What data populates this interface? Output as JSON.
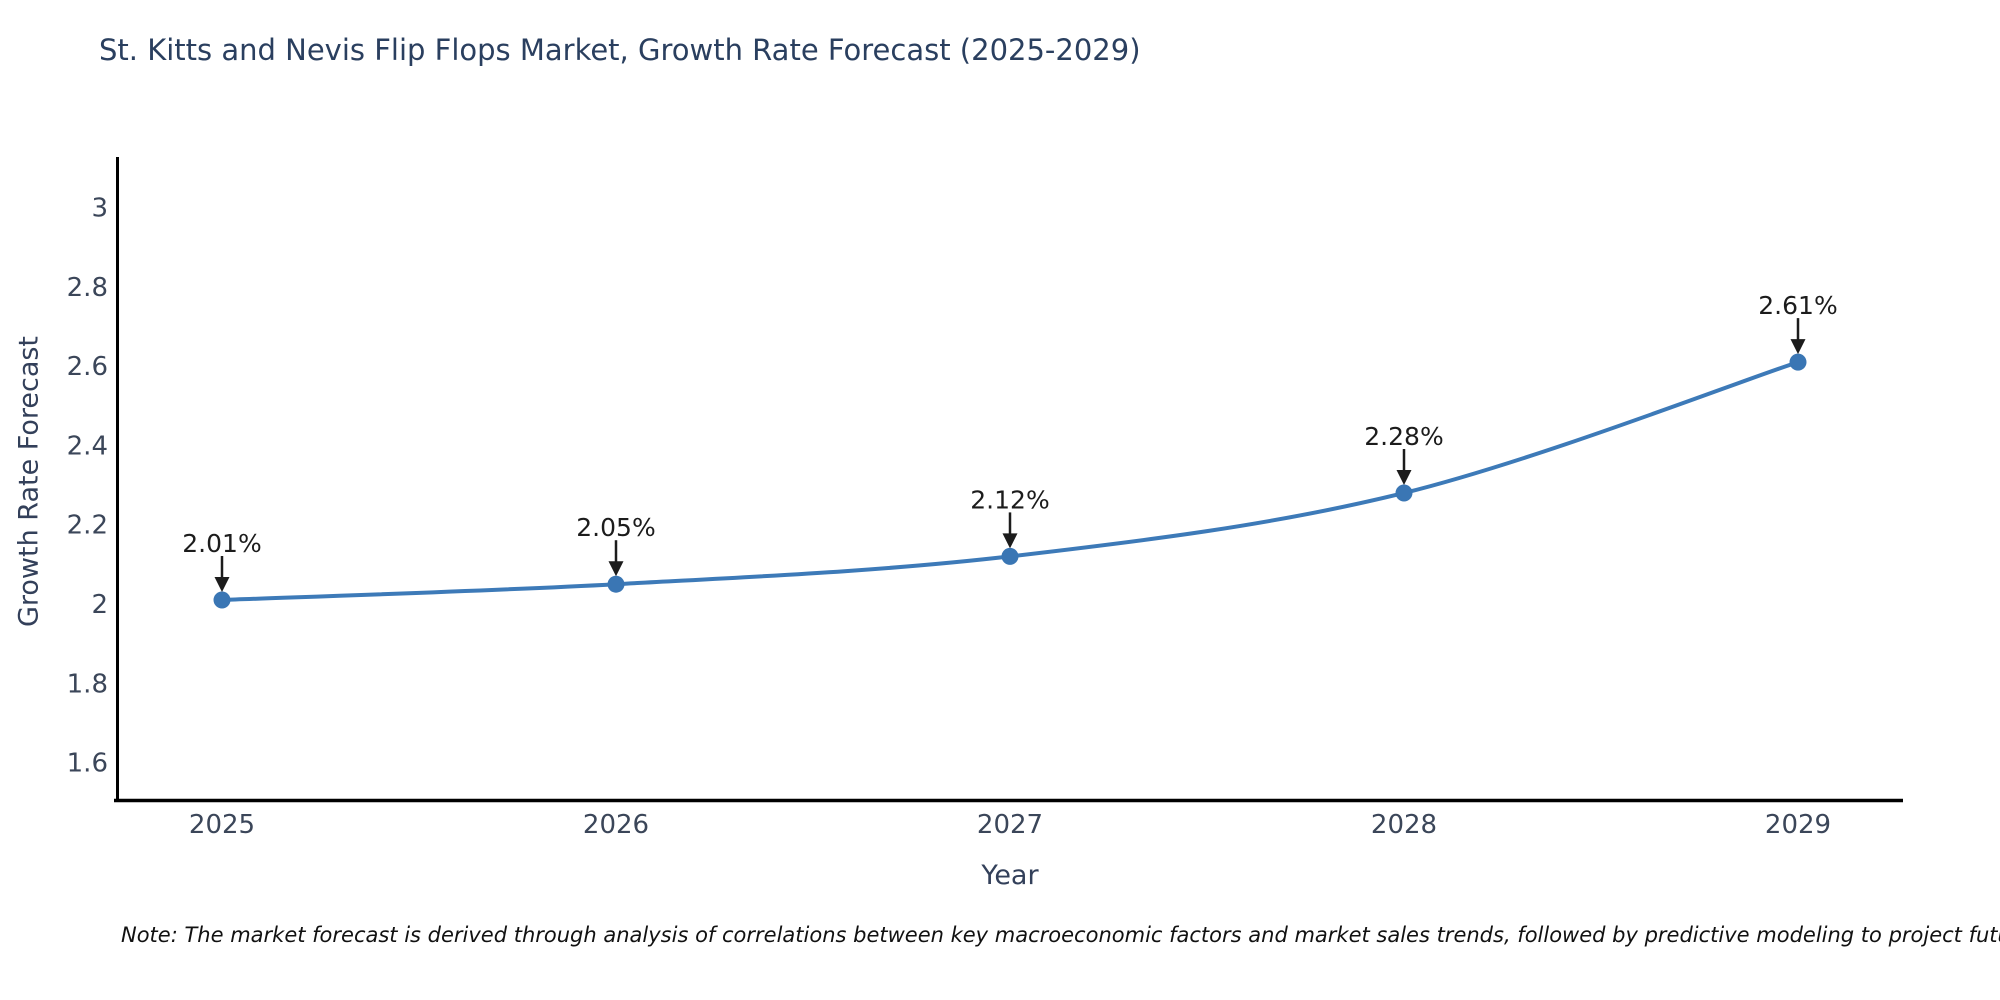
{
  "colors": {
    "background": "#ffffff",
    "title_text": "#2a3f5f",
    "axis_text": "#3b4659",
    "axis_line": "#000000",
    "series_line": "#3d7ab8",
    "marker_fill": "#3a76b4",
    "annotation": "#1c1c1c",
    "note_text": "#111111"
  },
  "chart_data": {
    "type": "line",
    "title": "St. Kitts and Nevis Flip Flops Market, Growth Rate Forecast (2025-2029)",
    "xlabel": "Year",
    "ylabel": "Growth Rate Forecast",
    "x": [
      2025,
      2026,
      2027,
      2028,
      2029
    ],
    "series": [
      {
        "name": "Growth Rate Forecast",
        "values": [
          2.01,
          2.05,
          2.12,
          2.28,
          2.61
        ],
        "point_labels": [
          "2.01%",
          "2.05%",
          "2.12%",
          "2.28%",
          "2.61%"
        ]
      }
    ],
    "yticks": [
      1.6,
      1.8,
      2,
      2.2,
      2.4,
      2.6,
      2.8,
      3
    ],
    "ylim": [
      1.51,
      3.12
    ],
    "xlim": [
      2024.73,
      2029.27
    ],
    "grid": false,
    "legend": null,
    "marker_style": "circle",
    "annotation_style": "down-arrow-to-point",
    "note": "Note: The market forecast is derived through analysis of correlations between key macroeconomic factors and market sales trends, followed by predictive modeling to project future sales"
  }
}
